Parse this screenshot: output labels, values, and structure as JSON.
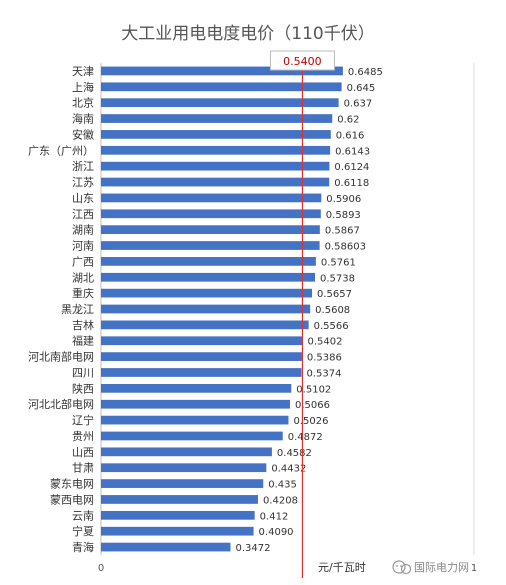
{
  "chart_data": {
    "type": "bar",
    "orientation": "horizontal",
    "title": "大工业用电电度电价（110千伏）",
    "categories": [
      "天津",
      "上海",
      "北京",
      "海南",
      "安徽",
      "广东（广州）",
      "浙江",
      "江苏",
      "山东",
      "江西",
      "湖南",
      "河南",
      "广西",
      "湖北",
      "重庆",
      "黑龙江",
      "吉林",
      "福建",
      "河北南部电网",
      "四川",
      "陕西",
      "河北北部电网",
      "辽宁",
      "贵州",
      "山西",
      "甘肃",
      "蒙东电网",
      "蒙西电网",
      "云南",
      "宁夏",
      "青海"
    ],
    "values": [
      0.6485,
      0.645,
      0.637,
      0.62,
      0.616,
      0.6143,
      0.6124,
      0.6118,
      0.5906,
      0.5893,
      0.5867,
      0.58603,
      0.5761,
      0.5738,
      0.5657,
      0.5608,
      0.5566,
      0.5402,
      0.5386,
      0.5374,
      0.5102,
      0.5066,
      0.5026,
      0.4872,
      0.4582,
      0.4432,
      0.435,
      0.4208,
      0.412,
      0.409,
      0.3472
    ],
    "value_labels": [
      "0.6485",
      "0.645",
      "0.637",
      "0.62",
      "0.616",
      "0.6143",
      "0.6124",
      "0.6118",
      "0.5906",
      "0.5893",
      "0.5867",
      "0.58603",
      "0.5761",
      "0.5738",
      "0.5657",
      "0.5608",
      "0.5566",
      "0.5402",
      "0.5386",
      "0.5374",
      "0.5102",
      "0.5066",
      "0.5026",
      "0.4872",
      "0.4582",
      "0.4432",
      "0.435",
      "0.4208",
      "0.412",
      "0.4090",
      "0.3472"
    ],
    "xlim": [
      0,
      1
    ],
    "x_ticks": [
      "0",
      "1"
    ],
    "x_unit": "元/千瓦时",
    "reference_line": {
      "value": 0.54,
      "label": "0.5400",
      "color": "#e03030"
    },
    "bar_color": "#4472c4",
    "grid": true,
    "legend": "none"
  },
  "watermark": "国际电力网"
}
